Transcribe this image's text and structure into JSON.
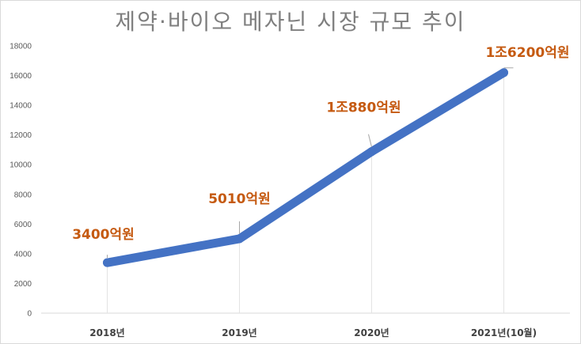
{
  "chart_data": {
    "type": "line",
    "title": "제약·바이오 메자닌 시장 규모 추이",
    "categories": [
      "2018년",
      "2019년",
      "2020년",
      "2021년(10월)"
    ],
    "series": [
      {
        "values": [
          3400,
          5010,
          10880,
          16200
        ]
      }
    ],
    "data_labels": [
      "3400억원",
      "5010억원",
      "1조880억원",
      "1조6200억원"
    ],
    "yticks": [
      0,
      2000,
      4000,
      6000,
      8000,
      10000,
      12000,
      14000,
      16000,
      18000
    ],
    "ylim": [
      0,
      18000
    ],
    "grid": false,
    "line_color": "#4472c4",
    "label_color": "#c55a11"
  }
}
